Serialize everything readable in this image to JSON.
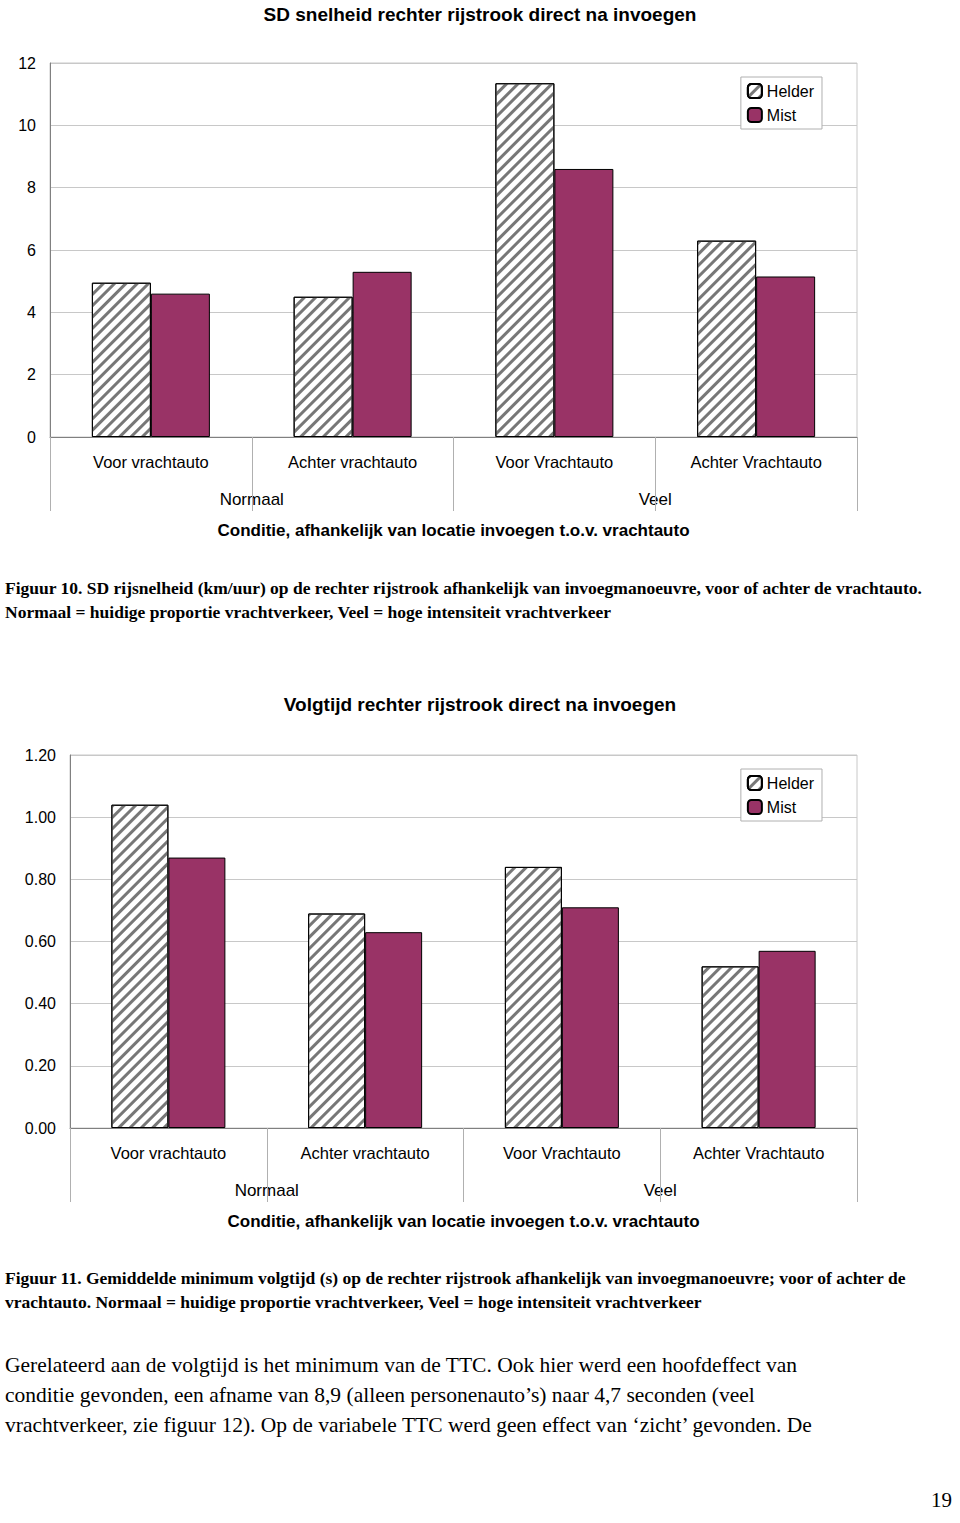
{
  "chart_data": [
    {
      "type": "bar",
      "title": "SD snelheid rechter rijstrook direct na invoegen",
      "x_label": "Conditie, afhankelijk van locatie invoegen t.o.v. vrachtauto",
      "categories": [
        "Voor vrachtauto",
        "Achter vrachtauto",
        "Voor Vrachtauto",
        "Achter Vrachtauto"
      ],
      "category_groups": [
        "Normaal",
        "Normaal",
        "Veel",
        "Veel"
      ],
      "series": [
        {
          "name": "Helder",
          "color": "#ffffff",
          "values": [
            4.95,
            4.5,
            11.35,
            6.3
          ]
        },
        {
          "name": "Mist",
          "color": "#993366",
          "values": [
            4.6,
            5.3,
            8.6,
            5.15
          ]
        }
      ],
      "ylim": [
        0,
        12
      ],
      "yticks": [
        0,
        2,
        4,
        6,
        8,
        10,
        12
      ],
      "grid": true,
      "legend": "upper right"
    },
    {
      "type": "bar",
      "title": "Volgtijd rechter rijstrook direct na invoegen",
      "x_label": "Conditie, afhankelijk van locatie invoegen t.o.v. vrachtauto",
      "categories": [
        "Voor vrachtauto",
        "Achter vrachtauto",
        "Voor Vrachtauto",
        "Achter Vrachtauto"
      ],
      "category_groups": [
        "Normaal",
        "Normaal",
        "Veel",
        "Veel"
      ],
      "series": [
        {
          "name": "Helder",
          "color": "#ffffff",
          "values": [
            1.04,
            0.69,
            0.84,
            0.52
          ]
        },
        {
          "name": "Mist",
          "color": "#993366",
          "values": [
            0.87,
            0.63,
            0.71,
            0.57
          ]
        }
      ],
      "ylim": [
        0,
        1.2
      ],
      "yticks": [
        {
          "value": 0,
          "label": "0.00"
        },
        {
          "value": 0.2,
          "label": "0.20"
        },
        {
          "value": 0.4,
          "label": "0.40"
        },
        {
          "value": 0.6,
          "label": "0.60"
        },
        {
          "value": 0.8,
          "label": "0.80"
        },
        {
          "value": 1.0,
          "label": "1.00"
        },
        {
          "value": 1.2,
          "label": "1.20"
        }
      ],
      "grid": true,
      "legend": "upper right"
    }
  ],
  "captions": [
    "Figuur 10. SD rijsnelheid (km/uur) op de rechter rijstrook afhankelijk van invoegmanoeuvre, voor of achter de vrachtauto. Normaal = huidige proportie vrachtverkeer, Veel = hoge intensiteit vrachtverkeer",
    "Figuur 11. Gemiddelde minimum volgtijd (s) op de rechter rijstrook afhankelijk van invoegmanoeuvre; voor of achter de vrachtauto. Normaal = huidige proportie vrachtverkeer, Veel = hoge intensiteit vrachtverkeer"
  ],
  "body_lines": [
    "Gerelateerd aan de volgtijd is het minimum van de TTC. Ook hier werd een hoofdeffect van",
    "conditie gevonden, een afname van 8,9 (alleen personenauto’s) naar 4,7 seconden (veel",
    "vrachtverkeer, zie figuur 12). Op de variabele TTC werd geen effect van ‘zicht’ gevonden. De"
  ],
  "page_number": "19"
}
